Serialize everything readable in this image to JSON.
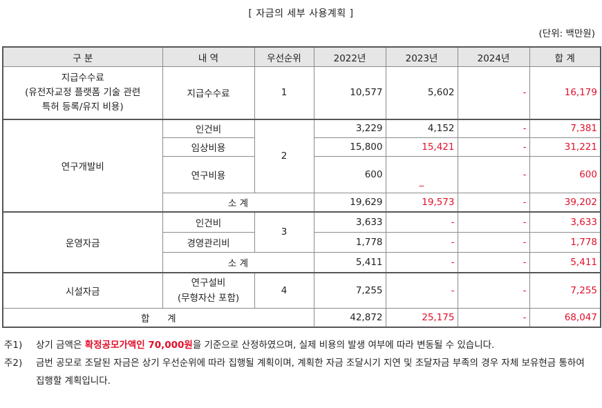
{
  "title": "[ 자금의 세부 사용계획 ]",
  "unit": "(단위: 백만원)",
  "headers": [
    "구 분",
    "내 역",
    "우선순위",
    "2022년",
    "2023년",
    "2024년",
    "합 계"
  ],
  "rows": {
    "fee": {
      "category": "지급수수료\n(유전자교정 플랫폼 기술 관련\n특허 등록/유지 비용)",
      "item": "지급수수료",
      "priority": "1",
      "y2022": "10,577",
      "y2023": "5,602",
      "y2024": "-",
      "total": "16,179"
    },
    "rnd": {
      "category": "연구개발비",
      "priority": "2",
      "items": [
        {
          "item": "인건비",
          "y2022": "3,229",
          "y2023": "4,152",
          "y2024": "-",
          "total": "7,381"
        },
        {
          "item": "임상비용",
          "y2022": "15,800",
          "y2023": "15,421",
          "y2024": "-",
          "total": "31,221"
        },
        {
          "item": "연구비용",
          "y2022": "600",
          "y2023": "_",
          "y2024": "-",
          "total": "600"
        }
      ],
      "subtotal": {
        "label": "소 계",
        "y2022": "19,629",
        "y2023": "19,573",
        "y2024": "-",
        "total": "39,202"
      }
    },
    "ops": {
      "category": "운영자금",
      "priority": "3",
      "items": [
        {
          "item": "인건비",
          "y2022": "3,633",
          "y2023": "-",
          "y2024": "-",
          "total": "3,633"
        },
        {
          "item": "경영관리비",
          "y2022": "1,778",
          "y2023": "-",
          "y2024": "-",
          "total": "1,778"
        }
      ],
      "subtotal": {
        "label": "소 계",
        "y2022": "5,411",
        "y2023": "-",
        "y2024": "-",
        "total": "5,411"
      }
    },
    "facility": {
      "category": "시설자금",
      "item": "연구설비\n(무형자산 포함)",
      "priority": "4",
      "y2022": "7,255",
      "y2023": "-",
      "y2024": "-",
      "total": "7,255"
    },
    "grand": {
      "label": "합      계",
      "y2022": "42,872",
      "y2023": "25,175",
      "y2024": "-",
      "total": "68,047"
    }
  },
  "notes": [
    {
      "label": "주1)",
      "pre": "상기 금액은 ",
      "highlight": "확정공모가액인 70,000원",
      "post": "을 기준으로 산정하였으며, 실제 비용의 발생 여부에 따라 변동될 수 있습니다."
    },
    {
      "label": "주2)",
      "text": "금번 공모로 조달된 자금은 상기 우선순위에 따라 집행될 계획이며, 계획한 자금 조달시기 지연 및 조달자금 부족의 경우 자체 보유현금 통하여 집행할 계획입니다."
    }
  ],
  "colors": {
    "accent_red": "#e0102a",
    "header_bg": "#e6e6e6"
  }
}
